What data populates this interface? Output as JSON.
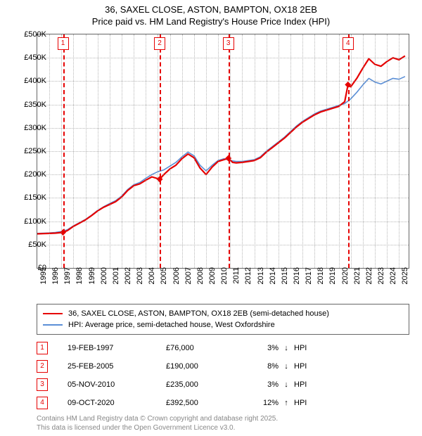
{
  "title": {
    "line1": "36, SAXEL CLOSE, ASTON, BAMPTON, OX18 2EB",
    "line2": "Price paid vs. HM Land Registry's House Price Index (HPI)"
  },
  "chart": {
    "type": "line",
    "background_color": "#ffffff",
    "grid_color": "#888888",
    "x": {
      "min": 1995,
      "max": 2025.8,
      "ticks": [
        1995,
        1996,
        1997,
        1998,
        1999,
        2000,
        2001,
        2002,
        2003,
        2004,
        2005,
        2006,
        2007,
        2008,
        2009,
        2010,
        2011,
        2012,
        2013,
        2014,
        2015,
        2016,
        2017,
        2018,
        2019,
        2020,
        2021,
        2022,
        2023,
        2024,
        2025
      ]
    },
    "y": {
      "min": 0,
      "max": 500000,
      "ticks": [
        0,
        50000,
        100000,
        150000,
        200000,
        250000,
        300000,
        350000,
        400000,
        450000,
        500000
      ],
      "tick_labels": [
        "£0",
        "£50K",
        "£100K",
        "£150K",
        "£200K",
        "£250K",
        "£300K",
        "£350K",
        "£400K",
        "£450K",
        "£500K"
      ]
    },
    "series": [
      {
        "id": "price_paid",
        "label": "36, SAXEL CLOSE, ASTON, BAMPTON, OX18 2EB (semi-detached house)",
        "color": "#e60000",
        "line_width": 2.2,
        "data": [
          [
            1995.0,
            73000
          ],
          [
            1995.5,
            73500
          ],
          [
            1996.0,
            74000
          ],
          [
            1996.5,
            74500
          ],
          [
            1997.13,
            76000
          ],
          [
            1997.5,
            80000
          ],
          [
            1998.0,
            89000
          ],
          [
            1998.5,
            96000
          ],
          [
            1999.0,
            103000
          ],
          [
            1999.5,
            112000
          ],
          [
            2000.0,
            122000
          ],
          [
            2000.5,
            130000
          ],
          [
            2001.0,
            136000
          ],
          [
            2001.5,
            142000
          ],
          [
            2002.0,
            152000
          ],
          [
            2002.5,
            166000
          ],
          [
            2003.0,
            176000
          ],
          [
            2003.5,
            180000
          ],
          [
            2004.0,
            188000
          ],
          [
            2004.5,
            195000
          ],
          [
            2005.15,
            190000
          ],
          [
            2005.5,
            200000
          ],
          [
            2006.0,
            212000
          ],
          [
            2006.5,
            220000
          ],
          [
            2007.0,
            234000
          ],
          [
            2007.5,
            244000
          ],
          [
            2008.0,
            236000
          ],
          [
            2008.5,
            214000
          ],
          [
            2009.0,
            200000
          ],
          [
            2009.5,
            216000
          ],
          [
            2010.0,
            228000
          ],
          [
            2010.5,
            232000
          ],
          [
            2010.85,
            235000
          ],
          [
            2011.2,
            226000
          ],
          [
            2011.5,
            225000
          ],
          [
            2012.0,
            226000
          ],
          [
            2012.5,
            228000
          ],
          [
            2013.0,
            230000
          ],
          [
            2013.5,
            236000
          ],
          [
            2014.0,
            248000
          ],
          [
            2014.5,
            258000
          ],
          [
            2015.0,
            268000
          ],
          [
            2015.5,
            278000
          ],
          [
            2016.0,
            290000
          ],
          [
            2016.5,
            302000
          ],
          [
            2017.0,
            312000
          ],
          [
            2017.5,
            320000
          ],
          [
            2018.0,
            328000
          ],
          [
            2018.5,
            334000
          ],
          [
            2019.0,
            338000
          ],
          [
            2019.5,
            342000
          ],
          [
            2020.0,
            346000
          ],
          [
            2020.5,
            356000
          ],
          [
            2020.77,
            392500
          ],
          [
            2021.0,
            388000
          ],
          [
            2021.5,
            406000
          ],
          [
            2022.0,
            428000
          ],
          [
            2022.5,
            448000
          ],
          [
            2023.0,
            436000
          ],
          [
            2023.5,
            432000
          ],
          [
            2024.0,
            442000
          ],
          [
            2024.5,
            450000
          ],
          [
            2025.0,
            446000
          ],
          [
            2025.5,
            454000
          ]
        ]
      },
      {
        "id": "hpi",
        "label": "HPI: Average price, semi-detached house, West Oxfordshire",
        "color": "#5b8fd6",
        "line_width": 1.6,
        "data": [
          [
            1995.0,
            74000
          ],
          [
            1995.5,
            74500
          ],
          [
            1996.0,
            75000
          ],
          [
            1996.5,
            76000
          ],
          [
            1997.0,
            78000
          ],
          [
            1997.5,
            82000
          ],
          [
            1998.0,
            90000
          ],
          [
            1998.5,
            97000
          ],
          [
            1999.0,
            104000
          ],
          [
            1999.5,
            113000
          ],
          [
            2000.0,
            123000
          ],
          [
            2000.5,
            131000
          ],
          [
            2001.0,
            138000
          ],
          [
            2001.5,
            144000
          ],
          [
            2002.0,
            154000
          ],
          [
            2002.5,
            168000
          ],
          [
            2003.0,
            178000
          ],
          [
            2003.5,
            183000
          ],
          [
            2004.0,
            192000
          ],
          [
            2004.5,
            200000
          ],
          [
            2005.0,
            206000
          ],
          [
            2005.5,
            210000
          ],
          [
            2006.0,
            218000
          ],
          [
            2006.5,
            226000
          ],
          [
            2007.0,
            238000
          ],
          [
            2007.5,
            248000
          ],
          [
            2008.0,
            240000
          ],
          [
            2008.5,
            220000
          ],
          [
            2009.0,
            208000
          ],
          [
            2009.5,
            220000
          ],
          [
            2010.0,
            230000
          ],
          [
            2010.5,
            234000
          ],
          [
            2011.0,
            230000
          ],
          [
            2011.5,
            228000
          ],
          [
            2012.0,
            228000
          ],
          [
            2012.5,
            230000
          ],
          [
            2013.0,
            232000
          ],
          [
            2013.5,
            238000
          ],
          [
            2014.0,
            250000
          ],
          [
            2014.5,
            260000
          ],
          [
            2015.0,
            270000
          ],
          [
            2015.5,
            280000
          ],
          [
            2016.0,
            292000
          ],
          [
            2016.5,
            304000
          ],
          [
            2017.0,
            314000
          ],
          [
            2017.5,
            322000
          ],
          [
            2018.0,
            330000
          ],
          [
            2018.5,
            336000
          ],
          [
            2019.0,
            340000
          ],
          [
            2019.5,
            344000
          ],
          [
            2020.0,
            348000
          ],
          [
            2020.5,
            352000
          ],
          [
            2021.0,
            362000
          ],
          [
            2021.5,
            376000
          ],
          [
            2022.0,
            392000
          ],
          [
            2022.5,
            406000
          ],
          [
            2023.0,
            398000
          ],
          [
            2023.5,
            394000
          ],
          [
            2024.0,
            400000
          ],
          [
            2024.5,
            406000
          ],
          [
            2025.0,
            404000
          ],
          [
            2025.5,
            410000
          ]
        ]
      }
    ],
    "markers": [
      {
        "n": "1",
        "x": 1997.13,
        "color": "#e60000"
      },
      {
        "n": "2",
        "x": 2005.15,
        "color": "#e60000"
      },
      {
        "n": "3",
        "x": 2010.85,
        "color": "#e60000"
      },
      {
        "n": "4",
        "x": 2020.77,
        "color": "#e60000"
      }
    ],
    "marker_points": [
      {
        "x": 1997.13,
        "y": 76000,
        "color": "#e60000"
      },
      {
        "x": 2005.15,
        "y": 190000,
        "color": "#e60000"
      },
      {
        "x": 2010.85,
        "y": 235000,
        "color": "#e60000"
      },
      {
        "x": 2020.77,
        "y": 392500,
        "color": "#e60000"
      }
    ]
  },
  "legend": {
    "items": [
      {
        "color": "#e60000",
        "label": "36, SAXEL CLOSE, ASTON, BAMPTON, OX18 2EB (semi-detached house)"
      },
      {
        "color": "#5b8fd6",
        "label": "HPI: Average price, semi-detached house, West Oxfordshire"
      }
    ]
  },
  "table": {
    "rows": [
      {
        "n": "1",
        "color": "#e60000",
        "date": "19-FEB-1997",
        "price": "£76,000",
        "diff": "3%",
        "arrow": "↓",
        "hpi": "HPI"
      },
      {
        "n": "2",
        "color": "#e60000",
        "date": "25-FEB-2005",
        "price": "£190,000",
        "diff": "8%",
        "arrow": "↓",
        "hpi": "HPI"
      },
      {
        "n": "3",
        "color": "#e60000",
        "date": "05-NOV-2010",
        "price": "£235,000",
        "diff": "3%",
        "arrow": "↓",
        "hpi": "HPI"
      },
      {
        "n": "4",
        "color": "#e60000",
        "date": "09-OCT-2020",
        "price": "£392,500",
        "diff": "12%",
        "arrow": "↑",
        "hpi": "HPI"
      }
    ]
  },
  "footer": {
    "line1": "Contains HM Land Registry data © Crown copyright and database right 2025.",
    "line2": "This data is licensed under the Open Government Licence v3.0."
  }
}
